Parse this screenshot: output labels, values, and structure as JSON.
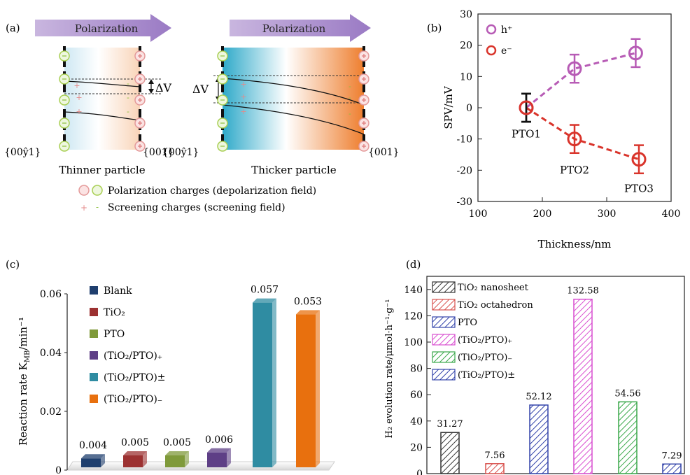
{
  "panels": {
    "a": {
      "label": "(a)",
      "arrow_label": "Polarization",
      "left_bottom_label": "Thinner particle",
      "right_bottom_label": "Thicker particle",
      "facet_left": "{00ŷ1}",
      "facet_left_plain": "{001}",
      "facet_right": "{001}",
      "facet_left_2": "{001}",
      "facet_right_2": "{001}",
      "delta_v": "ΔV",
      "legend_polarization": "Polarization charges (depolarization field)",
      "legend_screening": "Screening charges (screening field)"
    },
    "b": {
      "label": "(b)"
    },
    "c": {
      "label": "(c)"
    },
    "d": {
      "label": "(d)"
    }
  },
  "chart_data": [
    {
      "type": "line",
      "panel": "b",
      "xlabel": "Thickness/nm",
      "ylabel": "SPV/mV",
      "xlim": [
        100,
        400
      ],
      "ylim": [
        -30,
        30
      ],
      "xticks": [
        100,
        200,
        300,
        400
      ],
      "yticks": [
        -30,
        -20,
        -10,
        0,
        10,
        20,
        30
      ],
      "legend_position": "top-left",
      "series": [
        {
          "name": "h⁺",
          "color": "#b75bb5",
          "x": [
            175,
            250,
            345
          ],
          "y": [
            0,
            12.5,
            17.5
          ],
          "err": [
            4.5,
            4.5,
            4.5
          ]
        },
        {
          "name": "e⁻",
          "color": "#d9342b",
          "x": [
            175,
            250,
            350
          ],
          "y": [
            0,
            -10,
            -16.5
          ],
          "err": [
            4.5,
            4.5,
            4.5
          ]
        }
      ],
      "point_labels": [
        {
          "text": "PTO1",
          "x": 175,
          "y": -9.5
        },
        {
          "text": "PTO2",
          "x": 250,
          "y": -21
        },
        {
          "text": "PTO3",
          "x": 350,
          "y": -27
        }
      ]
    },
    {
      "type": "bar",
      "panel": "c",
      "ylabel": "Reaction rate K",
      "ylabel_sub": "MB",
      "ylabel_unit": "/min⁻¹",
      "ylim": [
        0,
        0.06
      ],
      "yticks": [
        0,
        0.02,
        0.04,
        0.06
      ],
      "ytick_labels": [
        "0",
        "0.02",
        "0.04",
        "0.06"
      ],
      "legend_position": "top-left",
      "categories": [
        "Blank",
        "TiO₂",
        "PTO",
        "(TiO₂/PTO)₊",
        "(TiO₂/PTO)±",
        "(TiO₂/PTO)₋"
      ],
      "values": [
        0.004,
        0.005,
        0.005,
        0.006,
        0.057,
        0.053
      ],
      "value_labels": [
        "0.004",
        "0.005",
        "0.005",
        "0.006",
        "0.057",
        "0.053"
      ],
      "colors": [
        "#1f3f6e",
        "#9c3131",
        "#7f9a3a",
        "#5e3f86",
        "#2f8ca2",
        "#e8700e"
      ]
    },
    {
      "type": "bar",
      "panel": "d",
      "ylabel": "H₂ evolution rate/μmol·h⁻¹·g⁻¹",
      "ylim": [
        0,
        140
      ],
      "yticks": [
        0,
        20,
        40,
        60,
        80,
        100,
        120,
        140
      ],
      "legend_position": "top-left",
      "categories": [
        "TiO₂ nanosheet",
        "TiO₂ octahedron",
        "PTO",
        "(TiO₂/PTO)₊",
        "(TiO₂/PTO)₋",
        "(TiO₂/PTO)±"
      ],
      "values": [
        31.27,
        7.56,
        52.12,
        132.58,
        54.56,
        7.29
      ],
      "value_labels": [
        "31.27",
        "7.56",
        "52.12",
        "132.58",
        "54.56",
        "7.29"
      ],
      "colors": [
        "#333333",
        "#d9534f",
        "#3344aa",
        "#d94fd0",
        "#3aa84a",
        "#3344aa"
      ]
    }
  ]
}
